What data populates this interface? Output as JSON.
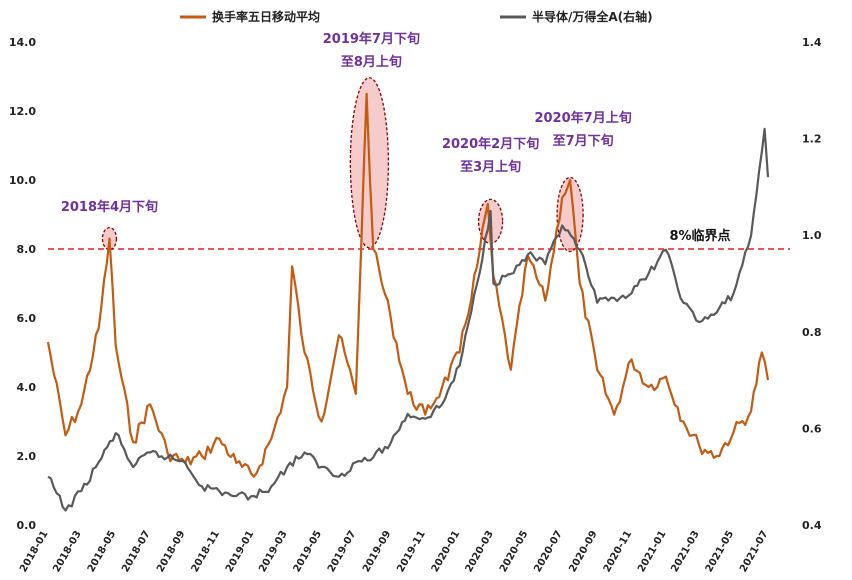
{
  "chart_data": {
    "type": "line",
    "title": "",
    "xlabel": "",
    "ylabel_left": "",
    "ylabel_right": "",
    "x_tick_labels": [
      "2018-01",
      "2018-03",
      "2018-05",
      "2018-07",
      "2018-09",
      "2018-11",
      "2019-01",
      "2019-03",
      "2019-05",
      "2019-07",
      "2019-09",
      "2019-11",
      "2020-01",
      "2020-03",
      "2020-05",
      "2020-07",
      "2020-09",
      "2020-11",
      "2021-01",
      "2021-03",
      "2021-05",
      "2021-07"
    ],
    "y_left": {
      "ticks": [
        "0.0",
        "2.0",
        "4.0",
        "6.0",
        "8.0",
        "10.0",
        "12.0",
        "14.0"
      ],
      "range": [
        0,
        14
      ]
    },
    "y_right": {
      "ticks": [
        "0.4",
        "0.6",
        "0.8",
        "1.0",
        "1.2",
        "1.4"
      ],
      "range": [
        0.4,
        1.4
      ]
    },
    "legend_position": "top",
    "series": [
      {
        "name": "换手率五日移动平均",
        "axis": "left",
        "color": "#c55a11",
        "points": [
          [
            "2018-01",
            5.3
          ],
          [
            "2018-02",
            2.6
          ],
          [
            "2018-03",
            3.5
          ],
          [
            "2018-04",
            5.7
          ],
          [
            "2018-04-20",
            8.3
          ],
          [
            "2018-05",
            5.2
          ],
          [
            "2018-06",
            2.4
          ],
          [
            "2018-07",
            3.5
          ],
          [
            "2018-08",
            2.1
          ],
          [
            "2018-09",
            1.8
          ],
          [
            "2018-10",
            2.0
          ],
          [
            "2018-11",
            2.5
          ],
          [
            "2018-12",
            1.8
          ],
          [
            "2019-01",
            1.4
          ],
          [
            "2019-02",
            2.5
          ],
          [
            "2019-03",
            4.0
          ],
          [
            "2019-03-10",
            7.5
          ],
          [
            "2019-04",
            5.0
          ],
          [
            "2019-05",
            3.0
          ],
          [
            "2019-06",
            5.5
          ],
          [
            "2019-07",
            3.8
          ],
          [
            "2019-07-20",
            12.5
          ],
          [
            "2019-08",
            8.0
          ],
          [
            "2019-09",
            6.0
          ],
          [
            "2019-10",
            3.8
          ],
          [
            "2019-11",
            3.2
          ],
          [
            "2019-12",
            4.0
          ],
          [
            "2020-01",
            5.0
          ],
          [
            "2020-02",
            7.5
          ],
          [
            "2020-02-20",
            9.3
          ],
          [
            "2020-03",
            7.2
          ],
          [
            "2020-04",
            4.5
          ],
          [
            "2020-05",
            7.8
          ],
          [
            "2020-06",
            6.5
          ],
          [
            "2020-07",
            9.5
          ],
          [
            "2020-07-15",
            10.0
          ],
          [
            "2020-08",
            7.0
          ],
          [
            "2020-09",
            4.5
          ],
          [
            "2020-10",
            3.2
          ],
          [
            "2020-11",
            4.8
          ],
          [
            "2020-12",
            4.0
          ],
          [
            "2021-01",
            4.3
          ],
          [
            "2021-02",
            3.0
          ],
          [
            "2021-03",
            2.3
          ],
          [
            "2021-04",
            2.0
          ],
          [
            "2021-05",
            2.7
          ],
          [
            "2021-06",
            3.3
          ],
          [
            "2021-06-20",
            5.0
          ],
          [
            "2021-07",
            4.2
          ]
        ]
      },
      {
        "name": "半导体/万得全A(右轴)",
        "axis": "right",
        "color": "#595959",
        "points": [
          [
            "2018-01",
            0.5
          ],
          [
            "2018-02",
            0.43
          ],
          [
            "2018-03",
            0.47
          ],
          [
            "2018-04",
            0.53
          ],
          [
            "2018-05",
            0.59
          ],
          [
            "2018-06",
            0.52
          ],
          [
            "2018-07",
            0.55
          ],
          [
            "2018-08",
            0.54
          ],
          [
            "2018-09",
            0.53
          ],
          [
            "2018-10",
            0.48
          ],
          [
            "2018-11",
            0.47
          ],
          [
            "2018-12",
            0.46
          ],
          [
            "2019-01",
            0.46
          ],
          [
            "2019-02",
            0.48
          ],
          [
            "2019-03",
            0.52
          ],
          [
            "2019-04",
            0.55
          ],
          [
            "2019-05",
            0.52
          ],
          [
            "2019-06",
            0.5
          ],
          [
            "2019-07",
            0.53
          ],
          [
            "2019-08",
            0.54
          ],
          [
            "2019-09",
            0.57
          ],
          [
            "2019-10",
            0.63
          ],
          [
            "2019-11",
            0.62
          ],
          [
            "2019-12",
            0.65
          ],
          [
            "2020-01",
            0.73
          ],
          [
            "2020-02",
            0.9
          ],
          [
            "2020-02-25",
            1.05
          ],
          [
            "2020-03",
            0.9
          ],
          [
            "2020-04",
            0.92
          ],
          [
            "2020-05",
            0.96
          ],
          [
            "2020-06",
            0.94
          ],
          [
            "2020-07",
            1.02
          ],
          [
            "2020-08",
            0.97
          ],
          [
            "2020-09",
            0.86
          ],
          [
            "2020-10",
            0.87
          ],
          [
            "2020-11",
            0.88
          ],
          [
            "2020-12",
            0.92
          ],
          [
            "2021-01",
            0.97
          ],
          [
            "2021-02",
            0.86
          ],
          [
            "2021-03",
            0.82
          ],
          [
            "2021-04",
            0.84
          ],
          [
            "2021-05",
            0.88
          ],
          [
            "2021-06",
            1.0
          ],
          [
            "2021-06-25",
            1.22
          ],
          [
            "2021-07",
            1.12
          ]
        ]
      }
    ],
    "threshold": {
      "value": 8.0,
      "label": "8%临界点",
      "color": "#e02020",
      "style": "dashed"
    },
    "annotations": [
      {
        "text_lines": [
          "2018年4月下旬"
        ],
        "x": "2018-04-20",
        "y": 8.3
      },
      {
        "text_lines": [
          "2019年7月下旬",
          "至8月上旬"
        ],
        "x": "2019-07-25",
        "y": 10.5
      },
      {
        "text_lines": [
          "2020年2月下旬",
          "至3月上旬"
        ],
        "x": "2020-02-25",
        "y": 8.8
      },
      {
        "text_lines": [
          "2020年7月上旬",
          "至7月下旬"
        ],
        "x": "2020-07-15",
        "y": 9.0
      }
    ]
  }
}
